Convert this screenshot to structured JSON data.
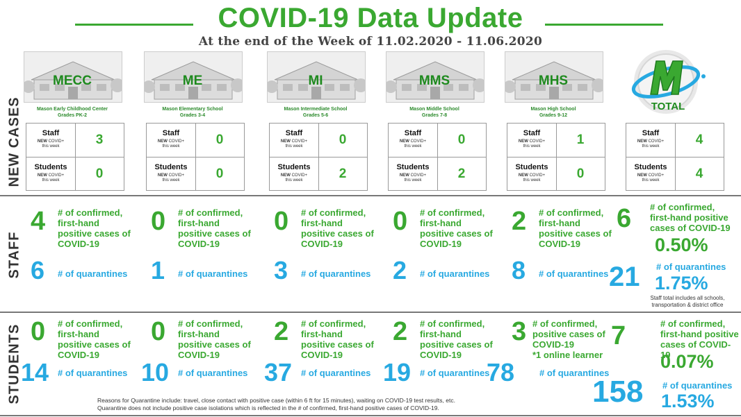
{
  "header": {
    "title": "COVID-19 Data Update",
    "subtitle": "At the end of the Week of 11.02.2020 - 11.06.2020"
  },
  "side_labels": {
    "new_cases": "NEW CASES",
    "staff": "STAFF",
    "students": "STUDENTS"
  },
  "case_labels": {
    "staff": "Staff",
    "students": "Students",
    "new_covid_bold": "NEW",
    "new_covid_rest": " COVID+",
    "this_week": "this week"
  },
  "schools": [
    {
      "code": "MECC",
      "name": "Mason Early Childhood Center",
      "grades": "Grades PK-2",
      "new_staff": "3",
      "new_students": "0",
      "staff_confirmed": "4",
      "staff_quarantines": "6",
      "students_confirmed": "0",
      "students_quarantines": "14"
    },
    {
      "code": "ME",
      "name": "Mason Elementary School",
      "grades": "Grades 3-4",
      "new_staff": "0",
      "new_students": "0",
      "staff_confirmed": "0",
      "staff_quarantines": "1",
      "students_confirmed": "0",
      "students_quarantines": "10"
    },
    {
      "code": "MI",
      "name": "Mason Intermediate  School",
      "grades": "Grades 5-6",
      "new_staff": "0",
      "new_students": "2",
      "staff_confirmed": "0",
      "staff_quarantines": "3",
      "students_confirmed": "2",
      "students_quarantines": "37"
    },
    {
      "code": "MMS",
      "name": "Mason Middle School",
      "grades": "Grades 7-8",
      "new_staff": "0",
      "new_students": "2",
      "staff_confirmed": "0",
      "staff_quarantines": "2",
      "students_confirmed": "2",
      "students_quarantines": "19"
    },
    {
      "code": "MHS",
      "name": "Mason High School",
      "grades": "Grades 9-12",
      "new_staff": "1",
      "new_students": "0",
      "staff_confirmed": "2",
      "staff_quarantines": "8",
      "students_confirmed": "3",
      "students_quarantines": "78"
    }
  ],
  "total": {
    "label": "TOTAL",
    "logo_letter": "M",
    "new_staff": "4",
    "new_students": "4",
    "staff_confirmed": "6",
    "staff_confirmed_pct": "0.50%",
    "staff_quarantines": "21",
    "staff_quarantines_pct": "1.75%",
    "staff_note": "Staff total includes all schools, transportation & district office",
    "students_confirmed": "7",
    "students_confirmed_pct": "0.07%",
    "students_quarantines": "158",
    "students_quarantines_pct": "1.53%"
  },
  "labels": {
    "confirmed_line1": "# of confirmed,",
    "confirmed_line2": "first-hand",
    "confirmed_line3": "positive cases of",
    "confirmed_line4": "COVID-19",
    "quarantines": "# of quarantines",
    "total_confirmed_1": "# of confirmed,",
    "total_confirmed_2": "first-hand positive",
    "total_confirmed_3": "cases of COVID-19",
    "mhs_students_1": "# of confirmed,",
    "mhs_students_2": "positive cases of",
    "mhs_students_3": "COVID-19",
    "mhs_students_4": "*1 online learner"
  },
  "footer": {
    "line1": "Reasons for Quarantine include: travel, close contact with positive case (within 6 ft for 15 minutes), waiting on COVID-19 test results, etc.",
    "line2": "Quarantine does not include positive case isolations which is reflected in the # of confirmed, first-hand positive cases of COVID-19."
  },
  "colors": {
    "green": "#3aa831",
    "blue": "#27a9e1",
    "dark_green": "#1e8a1e"
  }
}
